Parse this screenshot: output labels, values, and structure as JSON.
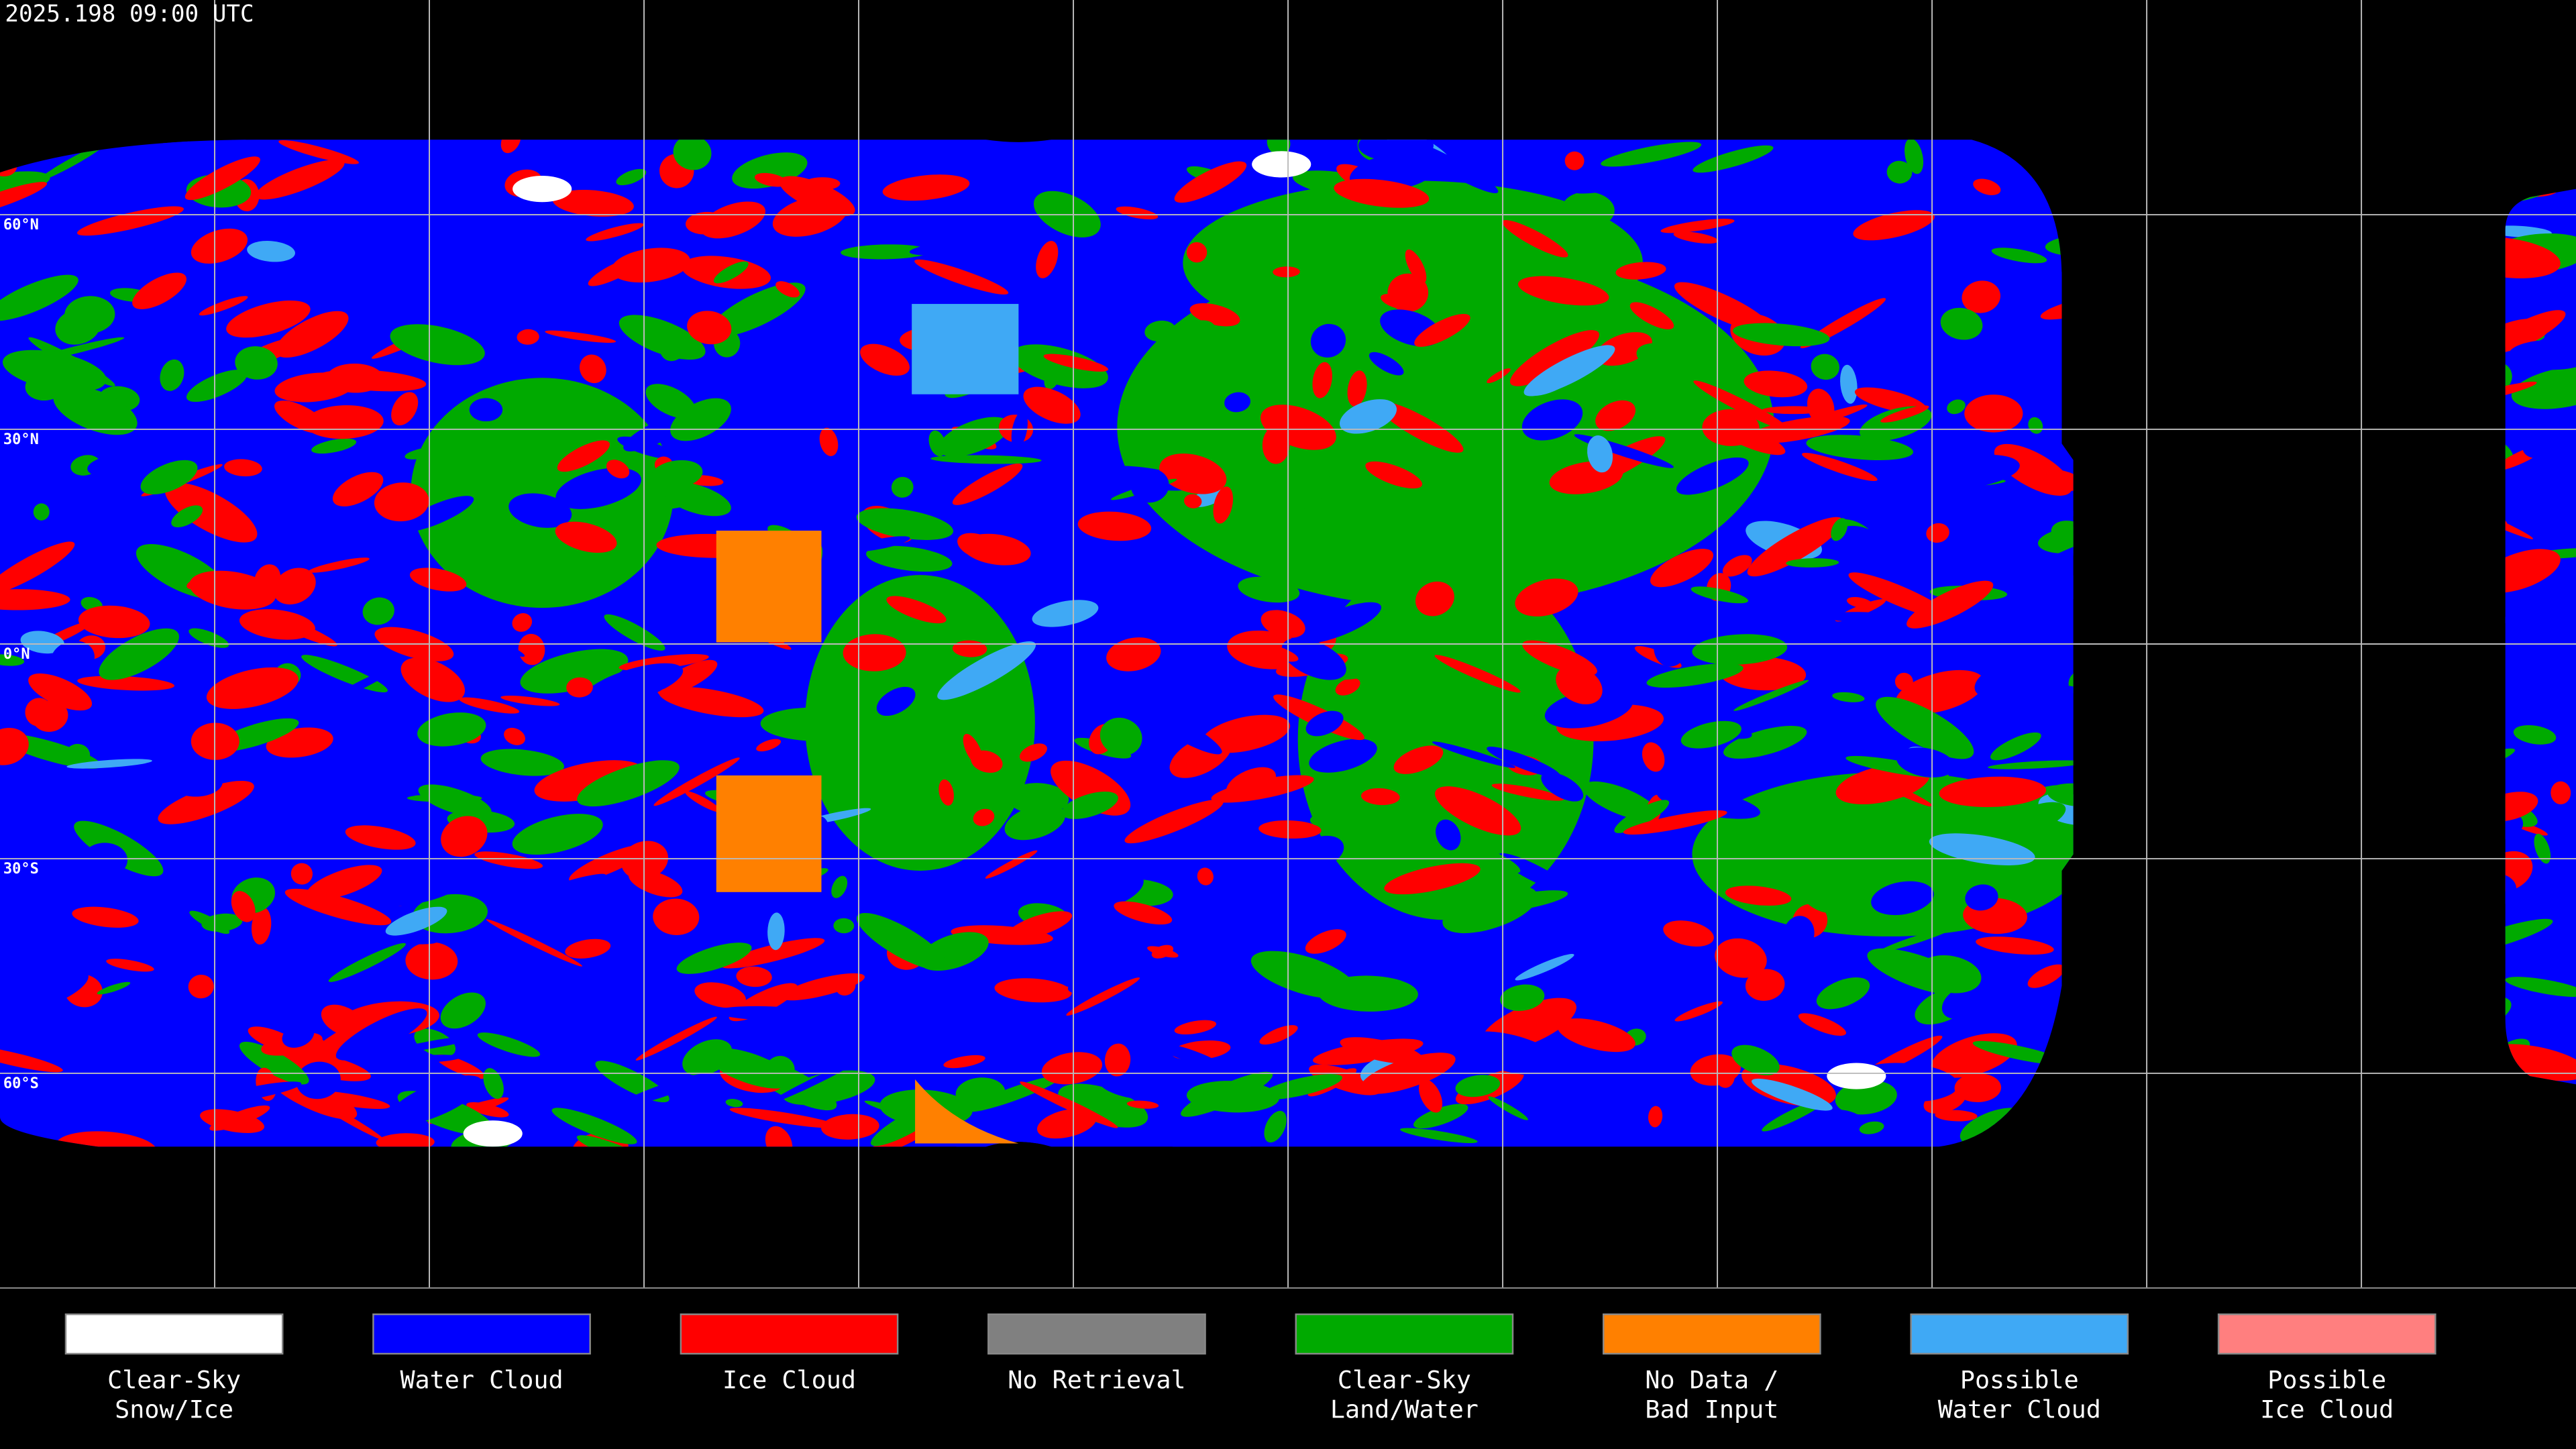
{
  "header": {
    "timestamp": "2025.198 09:00 UTC"
  },
  "map": {
    "latitude_labels": [
      "60°N",
      "30°N",
      "0°N",
      "30°S",
      "60°S"
    ]
  },
  "legend": {
    "items": [
      {
        "label_lines": [
          "Clear-Sky",
          "Snow/Ice"
        ],
        "color": "#ffffff"
      },
      {
        "label_lines": [
          "Water Cloud"
        ],
        "color": "#0000ff"
      },
      {
        "label_lines": [
          "Ice Cloud"
        ],
        "color": "#ff0000"
      },
      {
        "label_lines": [
          "No Retrieval"
        ],
        "color": "#808080"
      },
      {
        "label_lines": [
          "Clear-Sky",
          "Land/Water"
        ],
        "color": "#00aa00"
      },
      {
        "label_lines": [
          "No Data /",
          "Bad Input"
        ],
        "color": "#ff8000"
      },
      {
        "label_lines": [
          "Possible",
          "Water Cloud"
        ],
        "color": "#3fa9f5"
      },
      {
        "label_lines": [
          "Possible",
          "Ice Cloud"
        ],
        "color": "#ff7f7f"
      }
    ]
  }
}
